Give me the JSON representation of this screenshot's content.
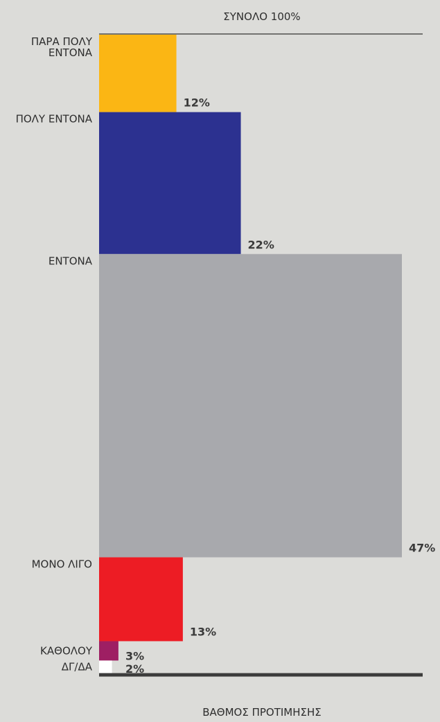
{
  "chart_data": {
    "type": "bar",
    "title": "ΣΥΝΟΛΟ 100%",
    "xlabel": "ΒΑΘΜΟΣ ΠΡΟΤΙΜΗΣΗΣ",
    "ylabel": "",
    "xlim": [
      0,
      47
    ],
    "grid": false,
    "categories": [
      [
        "ΠΑΡΑ ΠΟΛΥ",
        "ΕΝΤΟΝΑ"
      ],
      [
        "ΠΟΛΥ ΕΝΤΟΝΑ"
      ],
      [
        "ΕΝΤΟΝΑ"
      ],
      [
        "ΜΟΝΟ ΛΙΓΟ"
      ],
      [
        "ΚΑΘΟΛΟΥ"
      ],
      [
        "ΔΓ/ΔΑ"
      ]
    ],
    "values": [
      12,
      22,
      47,
      13,
      3,
      2
    ],
    "value_labels": [
      "12%",
      "22%",
      "47%",
      "13%",
      "3%",
      "2%"
    ],
    "colors": [
      "#fbb614",
      "#2c3190",
      "#a8a9ad",
      "#ed1c24",
      "#9e1f63",
      "#ffffff"
    ]
  }
}
